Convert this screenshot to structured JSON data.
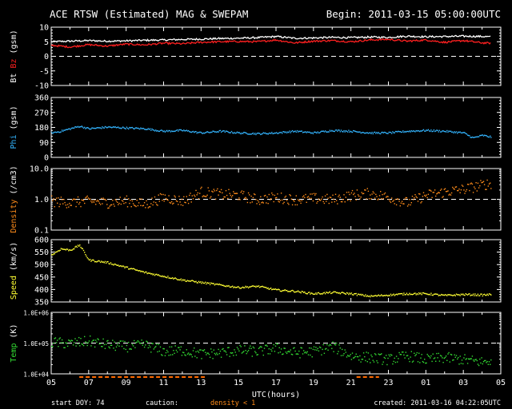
{
  "header": {
    "title": "ACE RTSW (Estimated) MAG & SWEPAM",
    "begin": "Begin: 2011-03-15 05:00:00UTC"
  },
  "footer": {
    "start_doy": "start DOY:  74",
    "caution_label": "caution:",
    "caution_text": "density < 1",
    "created": "created: 2011-03-16 04:22:05UTC"
  },
  "colors": {
    "background": "#000000",
    "axis": "#ffffff",
    "bt": "#ffffff",
    "bz": "#ff2020",
    "phi": "#33b5ff",
    "density": "#ff8c1a",
    "speed": "#ffff33",
    "temp": "#33dd33",
    "caution_bar": "#ff6a00"
  },
  "chart_data": [
    {
      "type": "line",
      "ylabel_parts": [
        {
          "text": "Bt",
          "color": "#ffffff"
        },
        {
          "text": " Bz",
          "color": "#ff2020"
        },
        {
          "text": " (gsm)",
          "color": "#ffffff"
        }
      ],
      "ylim": [
        -10,
        10
      ],
      "scale": "linear",
      "yticks": [
        "10",
        "5",
        "0",
        "-5",
        "-10"
      ],
      "ytick_values": [
        10,
        5,
        0,
        -5,
        -10
      ],
      "ref_line": 0,
      "series": [
        {
          "name": "Bt",
          "color": "#ffffff",
          "x": [
            0,
            1,
            2,
            3,
            4,
            5,
            6,
            7,
            8,
            9,
            10,
            11,
            12,
            13,
            14,
            15,
            16,
            17,
            18,
            19,
            20,
            21,
            22,
            23,
            23.5
          ],
          "values": [
            5.0,
            5.2,
            5.4,
            5.2,
            5.3,
            5.5,
            5.6,
            5.8,
            5.9,
            6.1,
            6.2,
            6.4,
            6.8,
            6.2,
            6.3,
            6.5,
            6.4,
            6.6,
            6.5,
            6.9,
            6.7,
            6.8,
            6.9,
            6.8,
            6.7
          ]
        },
        {
          "name": "Bz",
          "color": "#ff2020",
          "x": [
            0,
            1,
            2,
            3,
            4,
            5,
            6,
            7,
            8,
            9,
            10,
            11,
            12,
            13,
            14,
            15,
            16,
            17,
            18,
            19,
            20,
            21,
            22,
            23,
            23.5
          ],
          "values": [
            3.8,
            3.2,
            4.0,
            3.5,
            4.2,
            3.9,
            4.5,
            4.3,
            4.8,
            5.0,
            5.1,
            5.0,
            5.6,
            4.6,
            5.2,
            5.4,
            5.0,
            5.6,
            5.8,
            5.2,
            5.6,
            4.8,
            5.4,
            4.6,
            4.5
          ]
        }
      ]
    },
    {
      "type": "scatter",
      "ylabel_parts": [
        {
          "text": "Phi",
          "color": "#33b5ff"
        },
        {
          "text": " (gsm)",
          "color": "#ffffff"
        }
      ],
      "ylim": [
        0,
        360
      ],
      "scale": "linear",
      "yticks": [
        "360",
        "270",
        "180",
        "90",
        "0"
      ],
      "ytick_values": [
        360,
        270,
        180,
        90,
        0
      ],
      "series": [
        {
          "name": "Phi",
          "color": "#33b5ff",
          "x": [
            0,
            0.5,
            1,
            1.5,
            2,
            3,
            4,
            5,
            6,
            7,
            8,
            9,
            10,
            11,
            12,
            13,
            14,
            15,
            16,
            17,
            18,
            19,
            20,
            21,
            22,
            22.5,
            23,
            23.5
          ],
          "values": [
            150,
            160,
            175,
            190,
            175,
            185,
            180,
            175,
            160,
            165,
            150,
            160,
            150,
            145,
            150,
            160,
            150,
            165,
            160,
            150,
            150,
            160,
            165,
            160,
            150,
            120,
            135,
            125
          ]
        }
      ]
    },
    {
      "type": "scatter",
      "ylabel_parts": [
        {
          "text": "Density",
          "color": "#ff8c1a"
        },
        {
          "text": " (/cm3)",
          "color": "#ffffff"
        }
      ],
      "ylim": [
        0.1,
        10
      ],
      "scale": "log",
      "yticks": [
        "10.0",
        "1.0",
        "0.1"
      ],
      "ytick_values": [
        10,
        1,
        0.1
      ],
      "ref_line": 1,
      "series": [
        {
          "name": "Density",
          "color": "#ff8c1a",
          "x": [
            0,
            1,
            2,
            3,
            4,
            5,
            6,
            7,
            8,
            9,
            10,
            11,
            12,
            13,
            14,
            15,
            16,
            17,
            18,
            19,
            20,
            21,
            22,
            23,
            23.5
          ],
          "values": [
            0.9,
            0.8,
            0.9,
            0.8,
            0.9,
            0.7,
            1.2,
            0.9,
            1.8,
            1.5,
            1.4,
            1.0,
            1.2,
            1.0,
            1.1,
            1.0,
            1.4,
            1.6,
            1.2,
            0.8,
            1.4,
            1.8,
            2.2,
            3.0,
            3.5
          ]
        }
      ]
    },
    {
      "type": "scatter",
      "ylabel_parts": [
        {
          "text": "Speed",
          "color": "#ffff33"
        },
        {
          "text": " (km/s)",
          "color": "#ffffff"
        }
      ],
      "ylim": [
        350,
        600
      ],
      "scale": "linear",
      "yticks": [
        "600",
        "550",
        "500",
        "450",
        "400",
        "350"
      ],
      "ytick_values": [
        600,
        550,
        500,
        450,
        400,
        350
      ],
      "series": [
        {
          "name": "Speed",
          "color": "#ffff33",
          "x": [
            0,
            0.5,
            1,
            1.5,
            2,
            3,
            4,
            5,
            6,
            7,
            8,
            9,
            10,
            11,
            12,
            13,
            14,
            15,
            16,
            17,
            18,
            19,
            20,
            21,
            22,
            23,
            23.5
          ],
          "values": [
            540,
            565,
            560,
            580,
            520,
            510,
            490,
            470,
            455,
            440,
            430,
            420,
            410,
            415,
            400,
            395,
            385,
            390,
            385,
            375,
            380,
            385,
            385,
            378,
            382,
            380,
            382
          ]
        }
      ]
    },
    {
      "type": "scatter",
      "ylabel_parts": [
        {
          "text": "Temp",
          "color": "#33dd33"
        },
        {
          "text": " (K)",
          "color": "#ffffff"
        }
      ],
      "ylim": [
        10000,
        1000000
      ],
      "scale": "log",
      "yticks": [
        "1.0E+06",
        "1.0E+05",
        "1.0E+04"
      ],
      "ytick_values": [
        1000000,
        100000,
        10000
      ],
      "ref_line": 100000,
      "series": [
        {
          "name": "Temp",
          "color": "#33dd33",
          "x": [
            0,
            1,
            2,
            3,
            4,
            5,
            6,
            7,
            8,
            9,
            10,
            11,
            12,
            13,
            14,
            15,
            16,
            17,
            18,
            19,
            20,
            21,
            22,
            23,
            23.5
          ],
          "values": [
            110000,
            100000,
            120000,
            90000,
            80000,
            90000,
            55000,
            60000,
            45000,
            50000,
            60000,
            55000,
            70000,
            50000,
            55000,
            80000,
            40000,
            35000,
            30000,
            40000,
            30000,
            35000,
            30000,
            25000,
            28000
          ]
        }
      ]
    }
  ],
  "x_axis": {
    "label": "UTC(hours)",
    "range_hours": [
      0,
      24
    ],
    "ticks": [
      "05",
      "07",
      "09",
      "11",
      "13",
      "15",
      "17",
      "19",
      "21",
      "23",
      "01",
      "03",
      "05"
    ],
    "tick_hours": [
      0,
      2,
      4,
      6,
      8,
      10,
      12,
      14,
      16,
      18,
      20,
      22,
      24
    ]
  },
  "caution_segments": [
    [
      1.5,
      8.2
    ],
    [
      16.3,
      17.5
    ]
  ]
}
